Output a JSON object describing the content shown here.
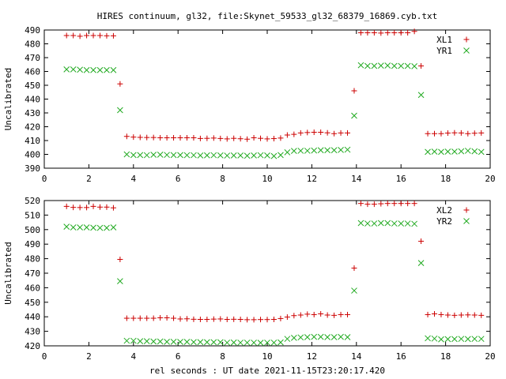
{
  "title": "HIRES continuum, gl32, file:Skynet_59533_gl32_68379_16869.cyb.txt",
  "xlabel": "rel seconds : UT date 2021-11-15T23:20:17.420",
  "colors": {
    "red_series": "#cc0000",
    "green_series": "#22aa22",
    "axes": "#000000"
  },
  "chart_data": [
    {
      "type": "scatter",
      "ylabel": "Uncalibrated",
      "xlim": [
        0,
        20
      ],
      "ylim": [
        390,
        490
      ],
      "xticks": [
        "0",
        "2",
        "4",
        "6",
        "8",
        "10",
        "12",
        "14",
        "16",
        "18",
        "20"
      ],
      "yticks": [
        "390",
        "400",
        "410",
        "420",
        "430",
        "440",
        "450",
        "460",
        "470",
        "480",
        "490"
      ],
      "legend_position": "top-right",
      "series": [
        {
          "name": "XL1",
          "marker": "plus",
          "color": "#cc0000",
          "x": [
            1.0,
            1.3,
            1.6,
            1.9,
            2.2,
            2.5,
            2.8,
            3.1,
            3.4,
            3.7,
            4.0,
            4.3,
            4.6,
            4.9,
            5.2,
            5.5,
            5.8,
            6.1,
            6.4,
            6.7,
            7.0,
            7.3,
            7.6,
            7.9,
            8.2,
            8.5,
            8.8,
            9.1,
            9.4,
            9.7,
            10.0,
            10.3,
            10.6,
            10.9,
            11.2,
            11.5,
            11.8,
            12.1,
            12.4,
            12.7,
            13.0,
            13.3,
            13.6,
            13.9,
            14.2,
            14.5,
            14.8,
            15.1,
            15.4,
            15.7,
            16.0,
            16.3,
            16.6,
            16.9,
            17.2,
            17.5,
            17.8,
            18.1,
            18.4,
            18.7,
            19.0,
            19.3,
            19.6
          ],
          "y": [
            486,
            486,
            485.5,
            486,
            486,
            486,
            485.8,
            485.8,
            451,
            413,
            412.5,
            412.3,
            412.2,
            412.2,
            412,
            412,
            412,
            412,
            412,
            412,
            411.5,
            411.6,
            411.8,
            411.5,
            411.2,
            411.6,
            411.3,
            411,
            412,
            411.6,
            411.2,
            411.4,
            411.8,
            414,
            414.5,
            415.5,
            415.8,
            416,
            416,
            415.6,
            415,
            415.5,
            415.5,
            446,
            488,
            488,
            488,
            487.8,
            488,
            488,
            488,
            488,
            489,
            464,
            415,
            415,
            415,
            415.4,
            415.6,
            415.5,
            415,
            415.3,
            415.5
          ]
        },
        {
          "name": "YR1",
          "marker": "cross",
          "color": "#22aa22",
          "x": [
            1.0,
            1.3,
            1.6,
            1.9,
            2.2,
            2.5,
            2.8,
            3.1,
            3.4,
            3.7,
            4.0,
            4.3,
            4.6,
            4.9,
            5.2,
            5.5,
            5.8,
            6.1,
            6.4,
            6.7,
            7.0,
            7.3,
            7.6,
            7.9,
            8.2,
            8.5,
            8.8,
            9.1,
            9.4,
            9.7,
            10.0,
            10.3,
            10.6,
            10.9,
            11.2,
            11.5,
            11.8,
            12.1,
            12.4,
            12.7,
            13.0,
            13.3,
            13.6,
            13.9,
            14.2,
            14.5,
            14.8,
            15.1,
            15.4,
            15.7,
            16.0,
            16.3,
            16.6,
            16.9,
            17.2,
            17.5,
            17.8,
            18.1,
            18.4,
            18.7,
            19.0,
            19.3,
            19.6
          ],
          "y": [
            461.5,
            461.5,
            461.3,
            461,
            461,
            461,
            461,
            461,
            432,
            400,
            399.5,
            399.5,
            399.4,
            399.7,
            399.8,
            399.6,
            399.5,
            399.5,
            399.4,
            399.4,
            399.2,
            399.3,
            399.4,
            399.3,
            399.1,
            399.2,
            399.2,
            399,
            399.2,
            399.4,
            399.2,
            398.8,
            399.5,
            401.5,
            402.5,
            402.6,
            402.6,
            402.8,
            403,
            403,
            403,
            403.2,
            403.4,
            428,
            464.5,
            464,
            464,
            464.2,
            464.3,
            464,
            464,
            464,
            463.8,
            443,
            401.8,
            402,
            401.8,
            402,
            402,
            402.2,
            402.6,
            402.2,
            401.8
          ]
        }
      ]
    },
    {
      "type": "scatter",
      "ylabel": "Uncalibrated",
      "xlim": [
        0,
        20
      ],
      "ylim": [
        420,
        520
      ],
      "xticks": [
        "0",
        "2",
        "4",
        "6",
        "8",
        "10",
        "12",
        "14",
        "16",
        "18",
        "20"
      ],
      "yticks": [
        "420",
        "430",
        "440",
        "450",
        "460",
        "470",
        "480",
        "490",
        "500",
        "510",
        "520"
      ],
      "legend_position": "top-right",
      "series": [
        {
          "name": "XL2",
          "marker": "plus",
          "color": "#cc0000",
          "x": [
            1.0,
            1.3,
            1.6,
            1.9,
            2.2,
            2.5,
            2.8,
            3.1,
            3.4,
            3.7,
            4.0,
            4.3,
            4.6,
            4.9,
            5.2,
            5.5,
            5.8,
            6.1,
            6.4,
            6.7,
            7.0,
            7.3,
            7.6,
            7.9,
            8.2,
            8.5,
            8.8,
            9.1,
            9.4,
            9.7,
            10.0,
            10.3,
            10.6,
            10.9,
            11.2,
            11.5,
            11.8,
            12.1,
            12.4,
            12.7,
            13.0,
            13.3,
            13.6,
            13.9,
            14.2,
            14.5,
            14.8,
            15.1,
            15.4,
            15.7,
            16.0,
            16.3,
            16.6,
            16.9,
            17.2,
            17.5,
            17.8,
            18.1,
            18.4,
            18.7,
            19.0,
            19.3,
            19.6
          ],
          "y": [
            516,
            515.3,
            515.2,
            515.2,
            516,
            515.5,
            515.5,
            515,
            479.5,
            439,
            439,
            439,
            439,
            439,
            439.3,
            439.3,
            439,
            438.5,
            438.6,
            438.3,
            438.2,
            438.2,
            438.4,
            438.5,
            438.2,
            438.3,
            438.2,
            438,
            438,
            438.1,
            438.1,
            438.2,
            438.8,
            439.8,
            440.8,
            441.2,
            441.8,
            441.5,
            442,
            441.2,
            441,
            441.5,
            441.5,
            473.5,
            518,
            517.5,
            517.5,
            517.8,
            518,
            518,
            518,
            518,
            518,
            492,
            441.5,
            442,
            441.5,
            441.2,
            441,
            441.2,
            441.3,
            441.2,
            441
          ]
        },
        {
          "name": "YR2",
          "marker": "cross",
          "color": "#22aa22",
          "x": [
            1.0,
            1.3,
            1.6,
            1.9,
            2.2,
            2.5,
            2.8,
            3.1,
            3.4,
            3.7,
            4.0,
            4.3,
            4.6,
            4.9,
            5.2,
            5.5,
            5.8,
            6.1,
            6.4,
            6.7,
            7.0,
            7.3,
            7.6,
            7.9,
            8.2,
            8.5,
            8.8,
            9.1,
            9.4,
            9.7,
            10.0,
            10.3,
            10.6,
            10.9,
            11.2,
            11.5,
            11.8,
            12.1,
            12.4,
            12.7,
            13.0,
            13.3,
            13.6,
            13.9,
            14.2,
            14.5,
            14.8,
            15.1,
            15.4,
            15.7,
            16.0,
            16.3,
            16.6,
            16.9,
            17.2,
            17.5,
            17.8,
            18.1,
            18.4,
            18.7,
            19.0,
            19.3,
            19.6
          ],
          "y": [
            502,
            501.5,
            501.5,
            501.5,
            501.3,
            501.2,
            501.2,
            501.5,
            464.5,
            423.5,
            423.5,
            423.2,
            423.2,
            423,
            423,
            422.8,
            422.8,
            422.7,
            422.7,
            422.6,
            422.6,
            422.5,
            422.5,
            422.5,
            422.2,
            422.3,
            422.2,
            422.2,
            422.2,
            422.1,
            422.2,
            422.2,
            422.4,
            424.8,
            425.5,
            425.8,
            426,
            426.2,
            426.2,
            426,
            426,
            426.2,
            426,
            458,
            504.5,
            504.2,
            504.2,
            504.5,
            504.5,
            504.2,
            504.2,
            504.2,
            504,
            477,
            425.2,
            425,
            424.5,
            424.6,
            424.7,
            424.8,
            424.7,
            424.8,
            424.8
          ]
        }
      ]
    }
  ]
}
